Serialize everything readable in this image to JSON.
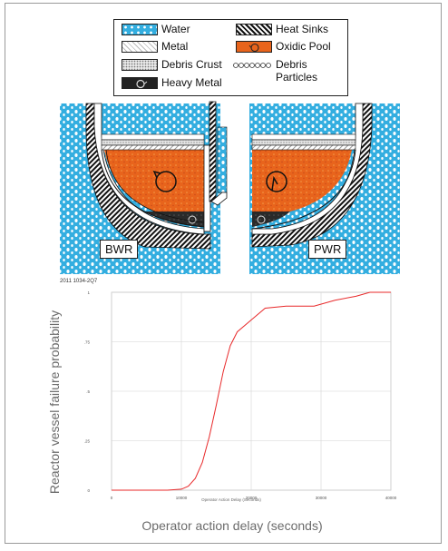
{
  "legend": {
    "items": [
      {
        "key": "water",
        "label": "Water"
      },
      {
        "key": "metal",
        "label": "Metal"
      },
      {
        "key": "crust",
        "label": "Debris Crust"
      },
      {
        "key": "heavy",
        "label": "Heavy Metal"
      },
      {
        "key": "heat",
        "label": "Heat Sinks"
      },
      {
        "key": "oxidic",
        "label": "Oxidic Pool"
      },
      {
        "key": "particles",
        "label": "Debris Particles"
      }
    ]
  },
  "diagram": {
    "left_vessel_label": "BWR",
    "right_vessel_label": "PWR",
    "figure_id": "2011 1034-2Q7"
  },
  "colors": {
    "water": "#33aee0",
    "oxidic": "#e8641c",
    "curve": "#e8292a",
    "grid": "#d4d4d4"
  },
  "chart_data": {
    "type": "line",
    "xlabel": "Operator action delay (seconds)",
    "xlabel_small": "Operator Action Delay (Seconds)",
    "ylabel": "Reactor vessel failure probability",
    "xlim": [
      0,
      40000
    ],
    "ylim": [
      0,
      1
    ],
    "x_ticks": [
      "0",
      "10000",
      "20000",
      "30000",
      "40000"
    ],
    "y_ticks": [
      "0",
      ".25",
      ".5",
      ".75",
      "1"
    ],
    "grid": true,
    "series": [
      {
        "x": [
          0,
          8000,
          10000,
          11000,
          12000,
          13000,
          14000,
          15000,
          16000,
          17000,
          18000,
          20000,
          22000,
          25000,
          29000,
          32000,
          35000,
          37000,
          40000
        ],
        "y": [
          0,
          0,
          0.005,
          0.02,
          0.06,
          0.14,
          0.27,
          0.43,
          0.6,
          0.73,
          0.8,
          0.86,
          0.92,
          0.93,
          0.93,
          0.96,
          0.98,
          1.0,
          1.0
        ]
      }
    ]
  }
}
